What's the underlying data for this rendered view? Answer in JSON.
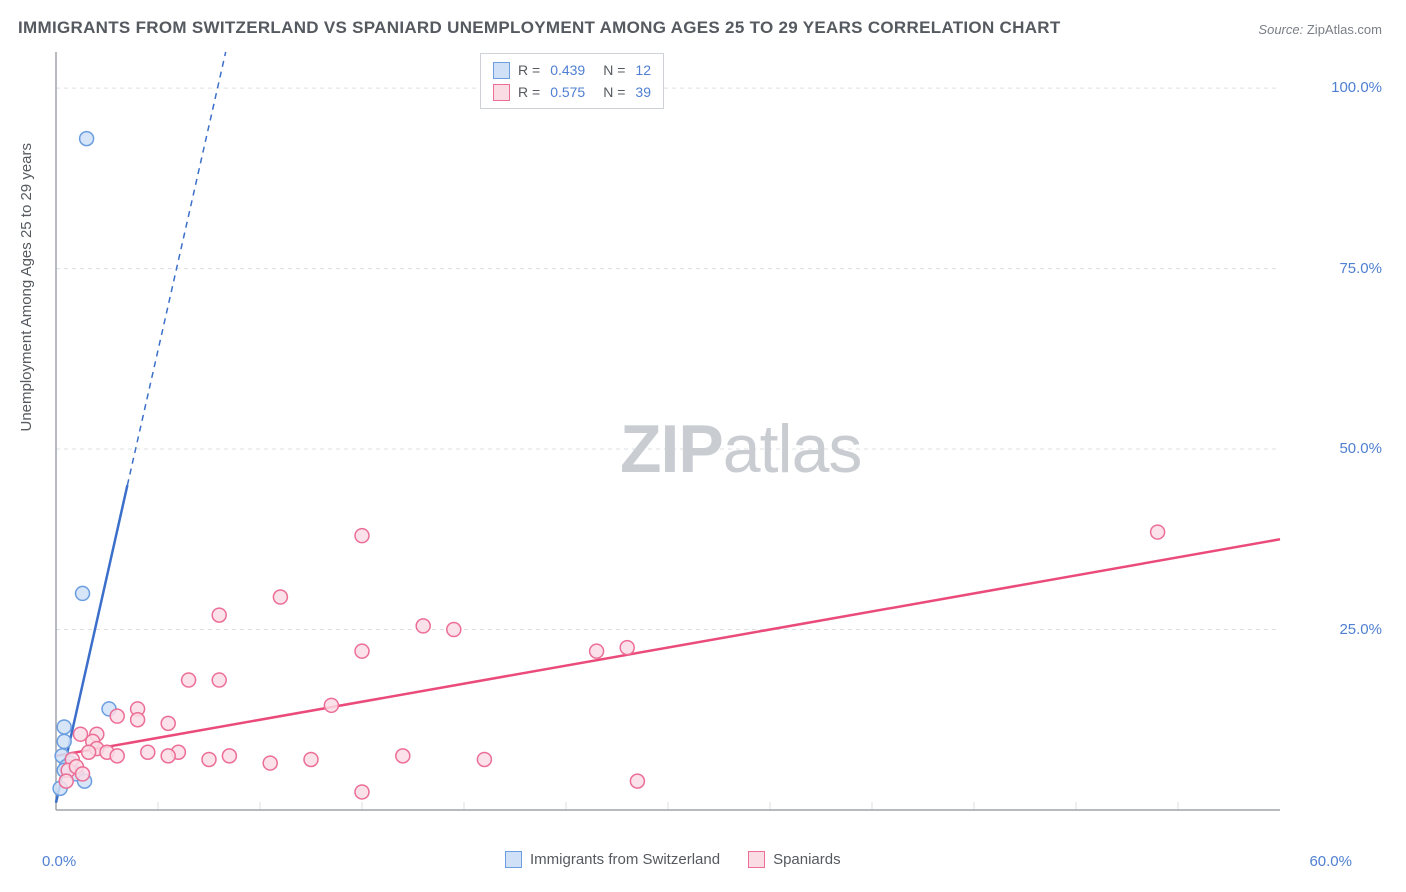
{
  "title": "IMMIGRANTS FROM SWITZERLAND VS SPANIARD UNEMPLOYMENT AMONG AGES 25 TO 29 YEARS CORRELATION CHART",
  "source_label": "Source:",
  "source_value": "ZipAtlas.com",
  "watermark_bold": "ZIP",
  "watermark_rest": "atlas",
  "chart": {
    "type": "scatter",
    "background_color": "#ffffff",
    "grid_color": "#dcdfe3",
    "axis_color": "#9fa4aa",
    "x_axis": {
      "min": 0.0,
      "max": 60.0,
      "ticks": [
        0.0,
        60.0
      ],
      "tick_labels": [
        "0.0%",
        "60.0%"
      ],
      "minor_ticks": [
        5,
        10,
        15,
        20,
        25,
        30,
        35,
        40,
        45,
        50,
        55
      ]
    },
    "y_axis": {
      "label": "Unemployment Among Ages 25 to 29 years",
      "min": 0.0,
      "max": 105.0,
      "ticks": [
        25.0,
        50.0,
        75.0,
        100.0
      ],
      "tick_labels": [
        "25.0%",
        "50.0%",
        "75.0%",
        "100.0%"
      ],
      "label_fontsize": 15,
      "tick_fontsize": 15,
      "tick_color": "#4f7fd1"
    },
    "legend_top": {
      "rows": [
        {
          "swatch_fill": "#cfe0f7",
          "swatch_border": "#6b9ee0",
          "r_label": "R =",
          "r_value": "0.439",
          "n_label": "N =",
          "n_value": "12"
        },
        {
          "swatch_fill": "#fadce5",
          "swatch_border": "#ec6e96",
          "r_label": "R =",
          "r_value": "0.575",
          "n_label": "N =",
          "n_value": "39"
        }
      ]
    },
    "legend_bottom": {
      "items": [
        {
          "swatch_fill": "#cfe0f7",
          "swatch_border": "#6b9ee0",
          "label": "Immigrants from Switzerland"
        },
        {
          "swatch_fill": "#fadce5",
          "swatch_border": "#ec6e96",
          "label": "Spaniards"
        }
      ]
    },
    "series": [
      {
        "name": "Immigrants from Switzerland",
        "marker_fill": "#cfe0f7",
        "marker_stroke": "#6b9ee0",
        "marker_radius": 7,
        "marker_opacity": 0.85,
        "line_color": "#3b6fc9",
        "line_width": 2.5,
        "line_dash_extension": true,
        "trend_start": [
          0,
          1
        ],
        "trend_end": [
          3.5,
          45
        ],
        "trend_dash_end": [
          8.8,
          111
        ],
        "points": [
          [
            1.5,
            93.0
          ],
          [
            1.3,
            30.0
          ],
          [
            2.6,
            14.0
          ],
          [
            0.4,
            11.5
          ],
          [
            0.4,
            9.5
          ],
          [
            0.3,
            7.5
          ],
          [
            0.7,
            6.5
          ],
          [
            0.5,
            6.0
          ],
          [
            0.4,
            5.5
          ],
          [
            1.0,
            5.0
          ],
          [
            1.4,
            4.0
          ],
          [
            0.2,
            3.0
          ]
        ]
      },
      {
        "name": "Spaniards",
        "marker_fill": "#fadce5",
        "marker_stroke": "#ec6e96",
        "marker_radius": 7,
        "marker_opacity": 0.85,
        "line_color": "#ea4b7a",
        "line_width": 2.5,
        "trend_start": [
          0,
          7.5
        ],
        "trend_end": [
          60,
          37.5
        ],
        "points": [
          [
            54.0,
            38.5
          ],
          [
            15.0,
            38.0
          ],
          [
            11.0,
            29.5
          ],
          [
            8.0,
            27.0
          ],
          [
            28.0,
            22.5
          ],
          [
            26.5,
            22.0
          ],
          [
            19.5,
            25.0
          ],
          [
            18.0,
            25.5
          ],
          [
            15.0,
            22.0
          ],
          [
            6.5,
            18.0
          ],
          [
            8.0,
            18.0
          ],
          [
            13.5,
            14.5
          ],
          [
            4.0,
            14.0
          ],
          [
            3.0,
            13.0
          ],
          [
            4.0,
            12.5
          ],
          [
            5.5,
            12.0
          ],
          [
            1.2,
            10.5
          ],
          [
            2.0,
            10.5
          ],
          [
            1.8,
            9.5
          ],
          [
            2.0,
            8.5
          ],
          [
            2.5,
            8.0
          ],
          [
            3.0,
            7.5
          ],
          [
            4.5,
            8.0
          ],
          [
            6.0,
            8.0
          ],
          [
            5.5,
            7.5
          ],
          [
            8.5,
            7.5
          ],
          [
            10.5,
            6.5
          ],
          [
            7.5,
            7.0
          ],
          [
            12.5,
            7.0
          ],
          [
            17.0,
            7.5
          ],
          [
            21.0,
            7.0
          ],
          [
            28.5,
            4.0
          ],
          [
            15.0,
            2.5
          ],
          [
            0.8,
            7.0
          ],
          [
            0.6,
            5.5
          ],
          [
            1.0,
            6.0
          ],
          [
            1.3,
            5.0
          ],
          [
            0.5,
            4.0
          ],
          [
            1.6,
            8.0
          ]
        ]
      }
    ]
  }
}
